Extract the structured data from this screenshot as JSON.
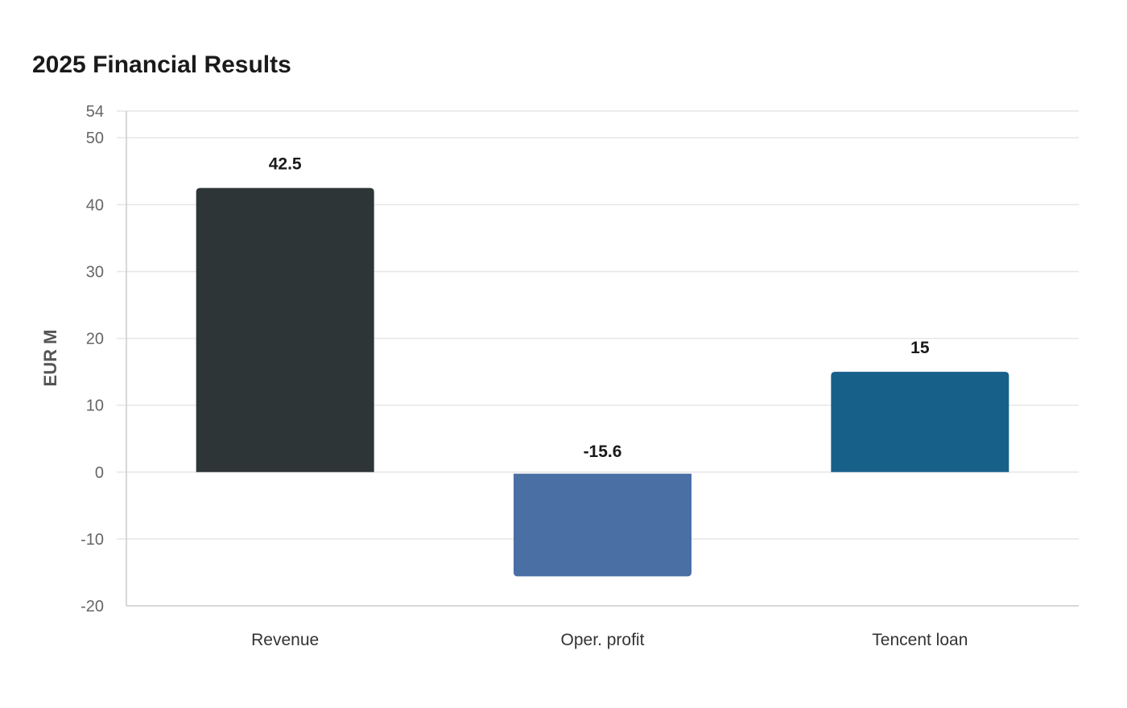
{
  "chart_data": {
    "type": "bar",
    "title": "2025 Financial Results",
    "xlabel": "",
    "ylabel": "EUR M",
    "ylim": [
      -20,
      54
    ],
    "yticks": [
      -20,
      -10,
      0,
      10,
      20,
      30,
      40,
      50,
      54
    ],
    "grid": true,
    "categories": [
      "Revenue",
      "Oper. profit",
      "Tencent loan"
    ],
    "values": [
      42.5,
      -15.6,
      15
    ],
    "value_labels": [
      "42.5",
      "-15.6",
      "15"
    ],
    "colors": [
      "#2e3537",
      "#4a6fa5",
      "#17608a"
    ]
  }
}
